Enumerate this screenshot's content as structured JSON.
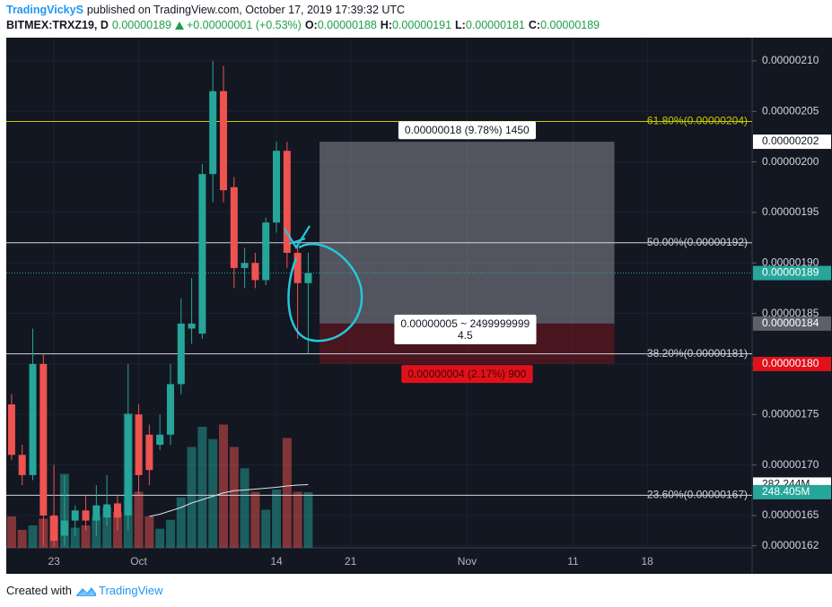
{
  "header": {
    "author": "TradingVickyS",
    "published": "published on TradingView.com, October 17, 2019 17:39:32 UTC",
    "symbol": "BITMEX:TRXZ19, D",
    "last": "0.00000189",
    "change": "+0.00000001 (+0.53%)",
    "ohlc": [
      {
        "key": "O:",
        "value": "0.00000188"
      },
      {
        "key": "H:",
        "value": "0.00000191"
      },
      {
        "key": "L:",
        "value": "0.00000181"
      },
      {
        "key": "C:",
        "value": "0.00000189"
      }
    ]
  },
  "chart_data": {
    "type": "candlestick",
    "up_color": "#26a69a",
    "down_color": "#ef5350",
    "open": [
      1.76e-06,
      1.71e-06,
      1.69e-06,
      1.8e-06,
      1.65e-06,
      1.63e-06,
      1.645e-06,
      1.655e-06,
      1.645e-06,
      1.648e-06,
      1.662e-06,
      1.65e-06,
      1.75e-06,
      1.73e-06,
      1.72e-06,
      1.73e-06,
      1.78e-06,
      1.835e-06,
      1.83e-06,
      1.988e-06,
      2.07e-06,
      1.975e-06,
      1.895e-06,
      1.9e-06,
      1.883e-06,
      1.94e-06,
      2.011e-06,
      1.91e-06,
      1.88e-06
    ],
    "high": [
      1.77e-06,
      1.72e-06,
      1.835e-06,
      1.81e-06,
      1.7e-06,
      1.69e-06,
      1.66e-06,
      1.67e-06,
      1.68e-06,
      1.69e-06,
      1.67e-06,
      1.8e-06,
      1.76e-06,
      1.74e-06,
      1.75e-06,
      1.8e-06,
      1.865e-06,
      1.885e-06,
      1.998e-06,
      2.1e-06,
      2.095e-06,
      1.985e-06,
      1.915e-06,
      1.91e-06,
      1.945e-06,
      2.02e-06,
      2.02e-06,
      1.92e-06,
      1.91e-06
    ],
    "low": [
      1.705e-06,
      1.68e-06,
      1.685e-06,
      1.62e-06,
      1.619e-06,
      1.62e-06,
      1.63e-06,
      1.635e-06,
      1.63e-06,
      1.64e-06,
      1.635e-06,
      1.635e-06,
      1.67e-06,
      1.68e-06,
      1.715e-06,
      1.72e-06,
      1.77e-06,
      1.82e-06,
      1.825e-06,
      1.96e-06,
      1.96e-06,
      1.875e-06,
      1.875e-06,
      1.875e-06,
      1.878e-06,
      1.93e-06,
      1.895e-06,
      1.825e-06,
      1.81e-06
    ],
    "close": [
      1.71e-06,
      1.69e-06,
      1.8e-06,
      1.65e-06,
      1.625e-06,
      1.645e-06,
      1.655e-06,
      1.645e-06,
      1.66e-06,
      1.661e-06,
      1.648e-06,
      1.75e-06,
      1.69e-06,
      1.695e-06,
      1.73e-06,
      1.78e-06,
      1.84e-06,
      1.84e-06,
      1.988e-06,
      2.07e-06,
      1.972e-06,
      1.895e-06,
      1.9e-06,
      1.883e-06,
      1.94e-06,
      2.011e-06,
      1.91e-06,
      1.88e-06,
      1.89e-06
    ],
    "volume": [
      140,
      80,
      100,
      130,
      140,
      330,
      90,
      100,
      140,
      180,
      160,
      600,
      250,
      140,
      85,
      125,
      225,
      450,
      540,
      485,
      550,
      450,
      355,
      250,
      170,
      260,
      490,
      250,
      248.405
    ],
    "volume_ma": [
      null,
      null,
      null,
      null,
      null,
      null,
      null,
      null,
      null,
      null,
      null,
      null,
      null,
      140,
      150,
      165,
      180,
      200,
      215,
      230,
      245,
      255,
      258,
      262,
      266,
      270,
      276,
      280,
      282.244
    ],
    "volume_label": {
      "value": 248.405,
      "label": "248.405M"
    },
    "volume_ma_label": {
      "value": 282.244,
      "label": "282.244M"
    },
    "xlim": [
      -0.5,
      69.9
    ],
    "xticks": [
      {
        "value": 4,
        "label": "23"
      },
      {
        "value": 12,
        "label": "Oct"
      },
      {
        "value": 25,
        "label": "14"
      },
      {
        "value": 32,
        "label": "21"
      },
      {
        "value": 43,
        "label": "Nov"
      },
      {
        "value": 53,
        "label": "11"
      },
      {
        "value": 60,
        "label": "18"
      }
    ],
    "ylim": [
      1.618e-06,
      2.123e-06
    ],
    "yticks": [
      {
        "value": 1.62e-06,
        "label": "0.00000162"
      },
      {
        "value": 1.65e-06,
        "label": "0.00000165"
      },
      {
        "value": 1.7e-06,
        "label": "0.00000170"
      },
      {
        "value": 1.75e-06,
        "label": "0.00000175"
      },
      {
        "value": 1.8e-06,
        "label": "0.00000180"
      },
      {
        "value": 1.85e-06,
        "label": "0.00000185"
      },
      {
        "value": 1.9e-06,
        "label": "0.00000190"
      },
      {
        "value": 1.95e-06,
        "label": "0.00000195"
      },
      {
        "value": 2e-06,
        "label": "0.00000200"
      },
      {
        "value": 2.05e-06,
        "label": "0.00000205"
      },
      {
        "value": 2.1e-06,
        "label": "0.00000210"
      }
    ],
    "grid": true,
    "fib_levels": [
      {
        "label": "61.80%(0.00000204)",
        "value": 2.04e-06,
        "color": "#c8c800"
      },
      {
        "label": "50.00%(0.00000192)",
        "value": 1.92e-06,
        "color": "#d1d4dc"
      },
      {
        "label": "38.20%(0.00000181)",
        "value": 1.81e-06,
        "color": "#d1d4dc"
      },
      {
        "label": "23.60%(0.00000167)",
        "value": 1.67e-06,
        "color": "#d1d4dc"
      }
    ],
    "position": {
      "x": [
        29.07,
        56.9
      ],
      "target": 2.02e-06,
      "entry": 1.84e-06,
      "stop": 1.8e-06,
      "target_label": "0.00000018 (9.78%) 1450",
      "stop_label": "0.00000004 (2.17%) 900",
      "info_label": [
        "0.00000005 ~ 2499999999",
        "4.5"
      ]
    },
    "price_labels": [
      {
        "value": 2.02e-06,
        "label": "0.00000202",
        "color": "#ffffff",
        "text_color": "#131722"
      },
      {
        "value": 1.89e-06,
        "label": "0.00000189",
        "color": "#26a69a",
        "text_color": "#ffffff"
      },
      {
        "value": 1.84e-06,
        "label": "0.00000184",
        "color": "#5d606b",
        "text_color": "#ffffff"
      },
      {
        "value": 1.8e-06,
        "label": "0.00000180",
        "color": "#e0111a",
        "text_color": "#ffffff"
      }
    ]
  },
  "footer": {
    "created": "Created with",
    "brand": "TradingView"
  }
}
